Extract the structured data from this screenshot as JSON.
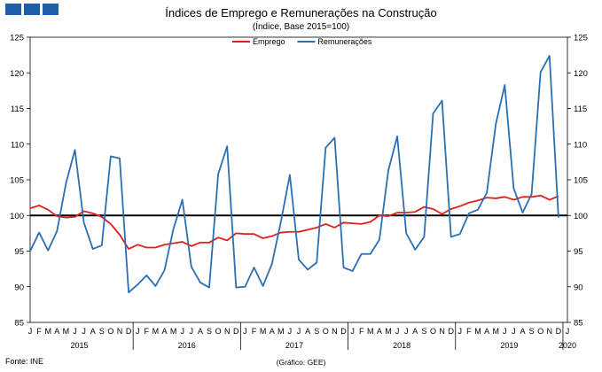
{
  "header": {
    "logo_icon": "ine-logo-icon",
    "title": "Índices de Emprego e Remunerações na Construção",
    "subtitle": "(Índice, Base 2015=100)"
  },
  "footer": {
    "source": "Fonte: INE",
    "credit": "(Gráfico: GEE)"
  },
  "chart_data": {
    "type": "line",
    "title": "Índices de Emprego e Remunerações na Construção",
    "subtitle": "(Índice, Base 2015=100)",
    "ylim": [
      85,
      125
    ],
    "yticks": [
      85,
      90,
      95,
      100,
      105,
      110,
      115,
      120,
      125
    ],
    "reference_line": 100,
    "legend_position": "top-center",
    "month_labels": [
      "J",
      "F",
      "M",
      "A",
      "M",
      "J",
      "J",
      "A",
      "S",
      "O",
      "N",
      "D",
      "J",
      "F",
      "M",
      "A",
      "M",
      "J",
      "J",
      "A",
      "S",
      "O",
      "N",
      "D",
      "J",
      "F",
      "M",
      "A",
      "M",
      "J",
      "J",
      "A",
      "S",
      "O",
      "N",
      "D",
      "J",
      "F",
      "M",
      "A",
      "M",
      "J",
      "J",
      "A",
      "S",
      "O",
      "N",
      "D",
      "J",
      "F",
      "M",
      "A",
      "M",
      "J",
      "J",
      "A",
      "S",
      "O",
      "N",
      "D",
      "J"
    ],
    "year_labels": [
      "2015",
      "2016",
      "2017",
      "2018",
      "2019",
      "2020"
    ],
    "colors": {
      "Emprego": "#e0201b",
      "Remunerações": "#2a6fb3",
      "reference": "#000000"
    },
    "series": [
      {
        "name": "Emprego",
        "values": [
          101.0,
          101.4,
          100.8,
          99.9,
          99.7,
          99.8,
          100.6,
          100.3,
          99.8,
          98.8,
          97.3,
          95.3,
          95.9,
          95.5,
          95.5,
          95.9,
          96.1,
          96.3,
          95.7,
          96.2,
          96.2,
          96.9,
          96.5,
          97.5,
          97.4,
          97.4,
          96.8,
          97.1,
          97.6,
          97.7,
          97.7,
          98.0,
          98.3,
          98.8,
          98.3,
          99.0,
          98.9,
          98.8,
          99.1,
          100.0,
          99.9,
          100.4,
          100.4,
          100.5,
          101.2,
          100.9,
          100.2,
          100.9,
          101.3,
          101.8,
          102.1,
          102.5,
          102.4,
          102.6,
          102.2,
          102.6,
          102.6,
          102.8,
          102.2,
          102.7
        ]
      },
      {
        "name": "Remunerações",
        "values": [
          95.0,
          97.6,
          95.1,
          97.8,
          104.5,
          109.2,
          99.0,
          95.3,
          95.8,
          108.3,
          108.0,
          89.2,
          90.3,
          91.6,
          90.1,
          92.3,
          98.1,
          102.2,
          92.8,
          90.6,
          89.9,
          105.8,
          109.7,
          89.9,
          90.0,
          92.7,
          90.1,
          93.2,
          99.1,
          105.7,
          93.8,
          92.4,
          93.4,
          109.5,
          110.9,
          92.7,
          92.2,
          94.6,
          94.6,
          96.6,
          106.3,
          111.1,
          97.5,
          95.2,
          97.0,
          114.3,
          116.1,
          97.0,
          97.4,
          100.3,
          100.8,
          103.2,
          112.8,
          118.3,
          103.8,
          100.4,
          103.0,
          120.1,
          122.4,
          99.7
        ]
      }
    ]
  }
}
